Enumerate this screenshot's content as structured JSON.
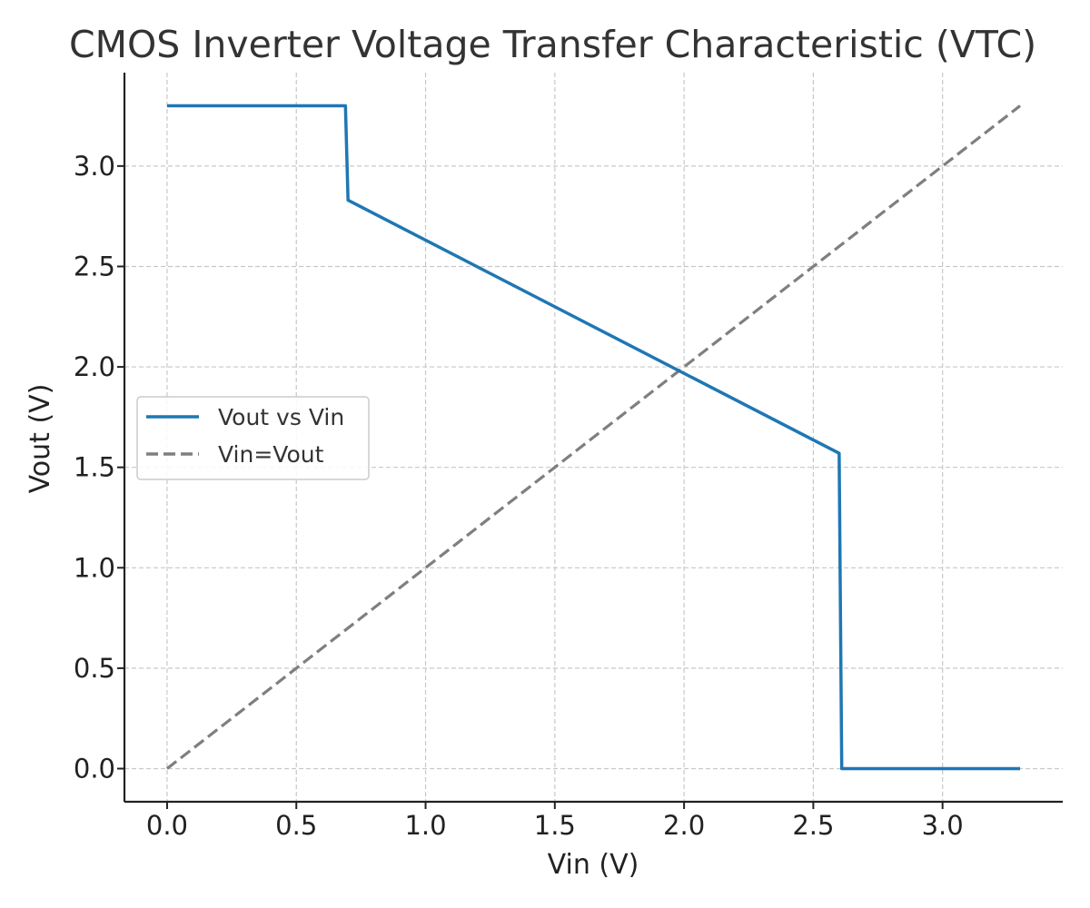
{
  "chart_data": {
    "type": "line",
    "title": "CMOS Inverter Voltage Transfer Characteristic (VTC)",
    "xlabel": "Vin (V)",
    "ylabel": "Vout (V)",
    "xlim": [
      -0.165,
      3.465
    ],
    "ylim": [
      -0.165,
      3.465
    ],
    "x_ticks": [
      "0.0",
      "0.5",
      "1.0",
      "1.5",
      "2.0",
      "2.5",
      "3.0"
    ],
    "y_ticks": [
      "0.0",
      "0.5",
      "1.0",
      "1.5",
      "2.0",
      "2.5",
      "3.0"
    ],
    "grid": true,
    "legend_position": "center-left",
    "series": [
      {
        "name": "Vout vs Vin",
        "color": "#1f77b4",
        "style": "solid",
        "x": [
          0.0,
          0.69,
          0.7,
          2.6,
          2.61,
          3.3
        ],
        "y": [
          3.3,
          3.3,
          2.83,
          1.57,
          0.0,
          0.0
        ]
      },
      {
        "name": "Vin=Vout",
        "color": "#7f7f7f",
        "style": "dashed",
        "x": [
          0.0,
          3.3
        ],
        "y": [
          0.0,
          3.3
        ]
      }
    ]
  }
}
